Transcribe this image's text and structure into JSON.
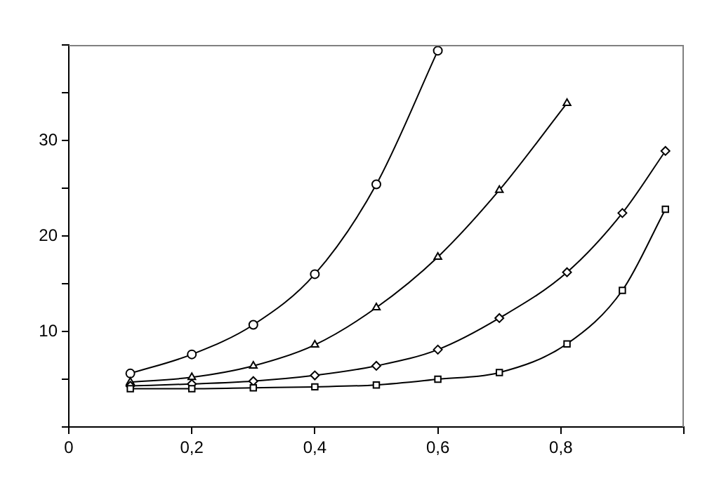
{
  "chart_data": {
    "type": "line",
    "xlim": [
      0,
      1
    ],
    "xticks": [
      0,
      {
        "value": 0.2,
        "label": "0,2"
      },
      {
        "value": 0.4,
        "label": "0,4"
      },
      {
        "value": 0.6,
        "label": "0,6"
      },
      {
        "value": 0.8,
        "label": "0,8"
      },
      {
        "value": 1,
        "label": null
      }
    ],
    "ylim": [
      0,
      40
    ],
    "yticks": [
      {
        "value": 0,
        "label": null
      },
      {
        "value": 5,
        "label": null
      },
      10,
      {
        "value": 15,
        "label": null
      },
      20,
      {
        "value": 25,
        "label": null
      },
      30,
      {
        "value": 35,
        "label": null
      },
      {
        "value": 40,
        "label": null
      }
    ],
    "grid": false,
    "legend": false,
    "line_style": "solid",
    "series": [
      {
        "color": "#000000",
        "marker": "circle",
        "x": [
          0.1,
          0.2,
          0.3,
          0.4,
          0.5,
          0.6
        ],
        "values": [
          5.6,
          7.6,
          10.7,
          16.0,
          25.4,
          39.4
        ]
      },
      {
        "color": "#000000",
        "marker": "triangle",
        "x": [
          0.1,
          0.2,
          0.3,
          0.4,
          0.5,
          0.6,
          0.7,
          0.81
        ],
        "values": [
          4.7,
          5.2,
          6.4,
          8.6,
          12.5,
          17.8,
          24.8,
          33.9
        ]
      },
      {
        "color": "#000000",
        "marker": "diamond",
        "x": [
          0.1,
          0.2,
          0.3,
          0.4,
          0.5,
          0.6,
          0.7,
          0.81,
          0.9,
          0.97
        ],
        "values": [
          4.3,
          4.5,
          4.8,
          5.4,
          6.4,
          8.1,
          11.4,
          16.2,
          22.4,
          28.9
        ]
      },
      {
        "color": "#000000",
        "marker": "square",
        "x": [
          0.1,
          0.2,
          0.3,
          0.4,
          0.5,
          0.6,
          0.7,
          0.81,
          0.9,
          0.97
        ],
        "values": [
          4.0,
          4.0,
          4.1,
          4.2,
          4.4,
          5.0,
          5.7,
          8.7,
          14.3,
          22.8
        ]
      }
    ]
  }
}
